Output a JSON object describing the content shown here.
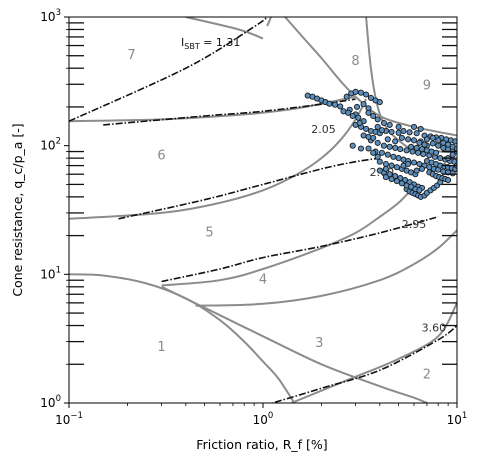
{
  "chart_data": {
    "type": "scatter",
    "title": "",
    "xlabel": "Friction ratio, R_f [%]",
    "ylabel": "Cone resistance, q_c/p_a [-]",
    "x_scale": "log",
    "y_scale": "log",
    "xlim": [
      0.1,
      10
    ],
    "ylim": [
      1,
      1000
    ],
    "x_ticks": [
      {
        "value": 0.1,
        "base": "10",
        "exp": "−1"
      },
      {
        "value": 1,
        "base": "10",
        "exp": "0"
      },
      {
        "value": 10,
        "base": "10",
        "exp": "1"
      }
    ],
    "y_ticks": [
      {
        "value": 1,
        "base": "10",
        "exp": "0"
      },
      {
        "value": 10,
        "base": "10",
        "exp": "1"
      },
      {
        "value": 100,
        "base": "10",
        "exp": "2"
      },
      {
        "value": 1000,
        "base": "10",
        "exp": "3"
      }
    ],
    "zone_labels": [
      {
        "text": "1",
        "x": 0.3,
        "y": 2.7
      },
      {
        "text": "2",
        "x": 7.0,
        "y": 1.65
      },
      {
        "text": "3",
        "x": 1.95,
        "y": 2.9
      },
      {
        "text": "4",
        "x": 1.0,
        "y": 9.0
      },
      {
        "text": "5",
        "x": 0.53,
        "y": 21
      },
      {
        "text": "6",
        "x": 0.3,
        "y": 83
      },
      {
        "text": "7",
        "x": 0.21,
        "y": 500
      },
      {
        "text": "8",
        "x": 3.0,
        "y": 450
      },
      {
        "text": "9",
        "x": 7.0,
        "y": 290
      }
    ],
    "ic_contours": [
      {
        "label": "1.31",
        "points": [
          [
            0.1,
            155
          ],
          [
            0.4,
            400
          ],
          [
            0.9,
            840
          ],
          [
            1.05,
            1000
          ]
        ]
      },
      {
        "label": "2.05",
        "points": [
          [
            0.15,
            145
          ],
          [
            0.5,
            170
          ],
          [
            1.0,
            185
          ],
          [
            2.0,
            210
          ],
          [
            3.0,
            230
          ]
        ]
      },
      {
        "label": "2.60",
        "points": [
          [
            0.18,
            27
          ],
          [
            0.5,
            38
          ],
          [
            1.0,
            50
          ],
          [
            2.0,
            66
          ],
          [
            3.0,
            75
          ],
          [
            4.0,
            80
          ]
        ]
      },
      {
        "label": "2.95",
        "points": [
          [
            0.3,
            8.8
          ],
          [
            0.6,
            11
          ],
          [
            1.0,
            13.5
          ],
          [
            2.0,
            16.5
          ],
          [
            4.0,
            21
          ],
          [
            8.0,
            28
          ]
        ]
      },
      {
        "label": "3.60",
        "points": [
          [
            1.0,
            0.95
          ],
          [
            2.0,
            1.3
          ],
          [
            4.0,
            1.8
          ],
          [
            8.0,
            3.1
          ],
          [
            10.0,
            4.0
          ]
        ]
      }
    ],
    "zone_boundaries": [
      {
        "points": [
          [
            0.1,
            10
          ],
          [
            0.15,
            9.8
          ],
          [
            0.25,
            8.5
          ],
          [
            0.4,
            6.5
          ],
          [
            0.6,
            4.4
          ],
          [
            0.8,
            3.0
          ],
          [
            1.0,
            2.1
          ],
          [
            1.2,
            1.55
          ],
          [
            1.45,
            1.0
          ]
        ]
      },
      {
        "points": [
          [
            0.3,
            8.0
          ],
          [
            0.5,
            5.5
          ],
          [
            1.0,
            3.3
          ],
          [
            2.0,
            2.0
          ],
          [
            4.0,
            1.35
          ],
          [
            6.0,
            1.1
          ],
          [
            7.0,
            1.0
          ]
        ]
      },
      {
        "points": [
          [
            0.1,
            27
          ],
          [
            0.3,
            30
          ],
          [
            0.6,
            36
          ],
          [
            1.0,
            45
          ],
          [
            1.5,
            60
          ],
          [
            2.0,
            80
          ],
          [
            2.5,
            110
          ],
          [
            3.0,
            160
          ],
          [
            3.4,
            230
          ]
        ]
      },
      {
        "points": [
          [
            0.3,
            8.2
          ],
          [
            0.6,
            9.0
          ],
          [
            1.0,
            11
          ],
          [
            2.0,
            16
          ],
          [
            3.0,
            21
          ],
          [
            4.0,
            28
          ],
          [
            5.0,
            36
          ],
          [
            6.0,
            48
          ]
        ]
      },
      {
        "points": [
          [
            0.45,
            5.7
          ],
          [
            1.0,
            5.9
          ],
          [
            2.0,
            6.8
          ],
          [
            4.0,
            9
          ],
          [
            6.0,
            12
          ],
          [
            8.0,
            16
          ],
          [
            10.0,
            22
          ]
        ]
      },
      {
        "points": [
          [
            1.4,
            1.0
          ],
          [
            3.0,
            1.6
          ],
          [
            5.0,
            2.2
          ],
          [
            8.0,
            3.3
          ],
          [
            10.0,
            6.0
          ]
        ]
      },
      {
        "points": [
          [
            0.1,
            155
          ],
          [
            0.3,
            160
          ],
          [
            0.8,
            175
          ],
          [
            1.5,
            195
          ],
          [
            3.0,
            240
          ]
        ]
      },
      {
        "points": [
          [
            0.4,
            1000
          ],
          [
            0.75,
            800
          ],
          [
            1.0,
            680
          ]
        ]
      },
      {
        "points": [
          [
            1.3,
            1000
          ],
          [
            1.6,
            700
          ],
          [
            2.0,
            480
          ],
          [
            2.5,
            320
          ],
          [
            3.0,
            240
          ],
          [
            4.0,
            170
          ],
          [
            6.0,
            140
          ],
          [
            10.0,
            120
          ]
        ]
      },
      {
        "points": [
          [
            3.4,
            1000
          ],
          [
            3.6,
            400
          ],
          [
            3.9,
            200
          ],
          [
            4.3,
            140
          ],
          [
            5.0,
            110
          ],
          [
            6.0,
            95
          ],
          [
            10.0,
            88
          ]
        ]
      },
      {
        "points": [
          [
            1.1,
            1000
          ],
          [
            1.05,
            850
          ]
        ]
      }
    ],
    "series": [
      {
        "points": [
          [
            1.7,
            245
          ],
          [
            1.8,
            240
          ],
          [
            1.9,
            232
          ],
          [
            2.0,
            225
          ],
          [
            2.1,
            218
          ],
          [
            2.2,
            212
          ],
          [
            2.35,
            208
          ],
          [
            2.5,
            202
          ],
          [
            2.7,
            240
          ],
          [
            2.85,
            255
          ],
          [
            3.0,
            262
          ],
          [
            3.2,
            258
          ],
          [
            3.4,
            250
          ],
          [
            3.6,
            235
          ],
          [
            3.8,
            225
          ],
          [
            4.0,
            218
          ],
          [
            2.8,
            190
          ],
          [
            3.0,
            175
          ],
          [
            3.1,
            165
          ],
          [
            3.3,
            155
          ],
          [
            3.2,
            140
          ],
          [
            3.4,
            135
          ],
          [
            3.6,
            130
          ],
          [
            3.8,
            128
          ],
          [
            4.0,
            125
          ],
          [
            4.3,
            130
          ],
          [
            4.6,
            128
          ],
          [
            5.0,
            126
          ],
          [
            5.3,
            130
          ],
          [
            5.7,
            127
          ],
          [
            6.2,
            125
          ],
          [
            6.8,
            120
          ],
          [
            7.3,
            118
          ],
          [
            7.8,
            116
          ],
          [
            8.3,
            115
          ],
          [
            8.8,
            112
          ],
          [
            9.3,
            110
          ],
          [
            9.8,
            108
          ],
          [
            3.6,
            110
          ],
          [
            3.9,
            105
          ],
          [
            4.2,
            100
          ],
          [
            4.5,
            98
          ],
          [
            4.8,
            96
          ],
          [
            5.1,
            94
          ],
          [
            5.5,
            92
          ],
          [
            5.9,
            90
          ],
          [
            6.3,
            88
          ],
          [
            6.7,
            86
          ],
          [
            7.2,
            84
          ],
          [
            7.7,
            82
          ],
          [
            8.2,
            80
          ],
          [
            8.7,
            78
          ],
          [
            9.2,
            76
          ],
          [
            9.7,
            75
          ],
          [
            3.8,
            90
          ],
          [
            4.1,
            88
          ],
          [
            4.4,
            85
          ],
          [
            4.7,
            82
          ],
          [
            5.0,
            80
          ],
          [
            5.3,
            78
          ],
          [
            5.6,
            76
          ],
          [
            6.0,
            74
          ],
          [
            6.4,
            72
          ],
          [
            6.8,
            70
          ],
          [
            7.2,
            68
          ],
          [
            7.6,
            66
          ],
          [
            8.0,
            65
          ],
          [
            8.5,
            63
          ],
          [
            9.0,
            62
          ],
          [
            9.5,
            61
          ],
          [
            4.0,
            75
          ],
          [
            4.3,
            72
          ],
          [
            4.6,
            70
          ],
          [
            4.9,
            68
          ],
          [
            5.2,
            66
          ],
          [
            5.5,
            64
          ],
          [
            5.8,
            62
          ],
          [
            6.1,
            60
          ],
          [
            3.5,
            95
          ],
          [
            3.7,
            88
          ],
          [
            3.9,
            82
          ],
          [
            4.2,
            62
          ],
          [
            4.5,
            60
          ],
          [
            4.8,
            58
          ],
          [
            5.1,
            56
          ],
          [
            5.4,
            54
          ],
          [
            5.7,
            52
          ],
          [
            6.0,
            50
          ],
          [
            6.3,
            48
          ],
          [
            6.6,
            47
          ],
          [
            5.5,
            46
          ],
          [
            5.7,
            44
          ],
          [
            5.9,
            43
          ],
          [
            6.1,
            42
          ],
          [
            6.3,
            41
          ],
          [
            6.5,
            40
          ],
          [
            6.8,
            41
          ],
          [
            7.0,
            43
          ],
          [
            7.3,
            45
          ],
          [
            7.6,
            47
          ],
          [
            7.9,
            49
          ],
          [
            8.2,
            52
          ],
          [
            4.3,
            57
          ],
          [
            4.6,
            55
          ],
          [
            4.9,
            53
          ],
          [
            5.2,
            51
          ],
          [
            5.5,
            49
          ],
          [
            5.8,
            48
          ],
          [
            6.1,
            46
          ],
          [
            6.4,
            45
          ],
          [
            7.0,
            100
          ],
          [
            7.5,
            104
          ],
          [
            8.0,
            100
          ],
          [
            8.5,
            96
          ],
          [
            9.0,
            94
          ],
          [
            9.5,
            92
          ],
          [
            10.0,
            90
          ],
          [
            6.5,
            108
          ],
          [
            7.0,
            112
          ],
          [
            7.5,
            115
          ],
          [
            8.0,
            110
          ],
          [
            8.5,
            105
          ],
          [
            9.0,
            102
          ],
          [
            9.5,
            98
          ],
          [
            5.2,
            115
          ],
          [
            5.6,
            112
          ],
          [
            6.0,
            110
          ],
          [
            6.4,
            105
          ],
          [
            6.8,
            102
          ],
          [
            4.8,
            108
          ],
          [
            4.4,
            112
          ],
          [
            3.3,
            120
          ],
          [
            3.5,
            117
          ],
          [
            3.7,
            115
          ],
          [
            2.9,
            170
          ],
          [
            3.05,
            200
          ],
          [
            3.3,
            210
          ],
          [
            3.5,
            195
          ],
          [
            2.6,
            185
          ],
          [
            2.75,
            180
          ],
          [
            3.0,
            145
          ],
          [
            3.15,
            150
          ],
          [
            2.9,
            100
          ],
          [
            3.2,
            95
          ],
          [
            7.2,
            62
          ],
          [
            7.5,
            60
          ],
          [
            7.8,
            58
          ],
          [
            8.1,
            57
          ],
          [
            8.4,
            56
          ],
          [
            8.7,
            55
          ],
          [
            9.0,
            54
          ],
          [
            7.0,
            76
          ],
          [
            7.4,
            74
          ],
          [
            7.8,
            72
          ],
          [
            8.2,
            70
          ],
          [
            8.6,
            69
          ],
          [
            9.0,
            68
          ],
          [
            9.4,
            67
          ],
          [
            9.8,
            66
          ],
          [
            6.0,
            140
          ],
          [
            6.5,
            135
          ],
          [
            5.0,
            140
          ],
          [
            4.5,
            145
          ],
          [
            4.2,
            150
          ],
          [
            3.9,
            160
          ],
          [
            3.7,
            170
          ],
          [
            3.5,
            180
          ],
          [
            9.0,
            80
          ],
          [
            9.5,
            85
          ],
          [
            10.0,
            95
          ],
          [
            10.0,
            70
          ],
          [
            6.2,
            64
          ],
          [
            6.6,
            66
          ],
          [
            5.3,
            70
          ],
          [
            5.6,
            72
          ],
          [
            4.0,
            64
          ],
          [
            4.3,
            66
          ],
          [
            3.9,
            140
          ],
          [
            4.1,
            132
          ],
          [
            5.8,
            98
          ],
          [
            6.2,
            96
          ],
          [
            6.6,
            94
          ],
          [
            7.0,
            92
          ],
          [
            7.4,
            90
          ],
          [
            7.8,
            88
          ]
        ]
      }
    ]
  },
  "sbt_label": {
    "main": "I",
    "sub": "SBT",
    "rest": " = 1.31"
  },
  "colors": {
    "marker_fill": "#5b8fbf",
    "marker_edge": "#1a1a1a",
    "boundary": "#8c8c8c",
    "contour": "#111111",
    "frame": "#000000"
  }
}
